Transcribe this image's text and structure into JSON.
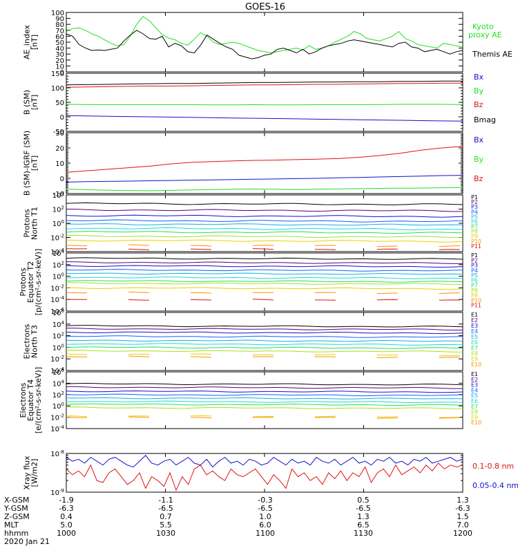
{
  "title": "GOES-16",
  "colors": {
    "black": "#000000",
    "blue": "#1010d0",
    "green": "#20e020",
    "red": "#e01010",
    "p_scale": [
      "#000000",
      "#5a006f",
      "#1010d0",
      "#1060ff",
      "#10b0e0",
      "#20d8d0",
      "#20e060",
      "#a8e020",
      "#e8d000",
      "#ff9000",
      "#e01010",
      "#b00000"
    ]
  },
  "bottom_axis": {
    "row_labels": [
      "X-GSM",
      "Y-GSM",
      "Z-GSM",
      "MLT",
      "hhmm",
      "2020 Jan 21"
    ],
    "columns": [
      {
        "x": "-1.9",
        "y": "-6.3",
        "z": "0.4",
        "mlt": "5.0",
        "hhmm": "1000"
      },
      {
        "x": "-1.1",
        "y": "-6.5",
        "z": "0.7",
        "mlt": "5.5",
        "hhmm": "1030"
      },
      {
        "x": "-0.3",
        "y": "-6.5",
        "z": "1.0",
        "mlt": "6.0",
        "hhmm": "1100"
      },
      {
        "x": "0.5",
        "y": "-6.5",
        "z": "1.3",
        "mlt": "6.5",
        "hhmm": "1130"
      },
      {
        "x": "1.3",
        "y": "-6.3",
        "z": "1.5",
        "mlt": "7.0",
        "hhmm": "1200"
      }
    ]
  },
  "chart_data": [
    {
      "type": "line",
      "ylabel": "AE_index [nT]",
      "ylim": [
        0,
        100
      ],
      "yticks": [
        "0",
        "10",
        "20",
        "30",
        "40",
        "50",
        "60",
        "70",
        "80",
        "90",
        "100"
      ],
      "series": [
        {
          "name": "Kyoto proxy AE",
          "color": "#20e020",
          "values": [
            68,
            73,
            74,
            70,
            64,
            60,
            54,
            48,
            44,
            46,
            60,
            80,
            93,
            86,
            74,
            63,
            57,
            54,
            48,
            45,
            55,
            66,
            60,
            50,
            46,
            48,
            50,
            48,
            44,
            40,
            36,
            34,
            32,
            34,
            36,
            38,
            40,
            37,
            44,
            38,
            40,
            44,
            50,
            55,
            60,
            68,
            64,
            56,
            54,
            52,
            56,
            60,
            68,
            56,
            52,
            46,
            44,
            42,
            40,
            48,
            46,
            44,
            42
          ]
        },
        {
          "name": "Themis AE",
          "color": "#000000",
          "values": [
            64,
            60,
            46,
            40,
            36,
            37,
            36,
            38,
            40,
            52,
            62,
            70,
            64,
            56,
            55,
            60,
            42,
            48,
            44,
            34,
            32,
            45,
            62,
            55,
            48,
            42,
            38,
            28,
            25,
            22,
            24,
            28,
            30,
            38,
            40,
            36,
            32,
            38,
            30,
            34,
            40,
            44,
            46,
            48,
            52,
            54,
            52,
            50,
            48,
            46,
            44,
            42,
            48,
            50,
            42,
            40,
            34,
            36,
            38,
            34,
            30,
            34,
            36
          ]
        }
      ]
    },
    {
      "type": "line",
      "ylabel": "B (SM) [nT]",
      "ylim": [
        -50,
        150
      ],
      "yticks": [
        "-50",
        "0",
        "50",
        "100",
        "150"
      ],
      "series": [
        {
          "name": "Bx",
          "color": "#1010d0",
          "values": [
            4,
            3,
            2,
            1,
            0,
            -1,
            -2,
            -3,
            -4,
            -5,
            -6,
            -7,
            -8,
            -9,
            -10,
            -11,
            -12,
            -13,
            -14,
            -15
          ]
        },
        {
          "name": "By",
          "color": "#20e020",
          "values": [
            43,
            42,
            42,
            42,
            42,
            42,
            42,
            41,
            41,
            42,
            41,
            41,
            42,
            42,
            42,
            42,
            43,
            43,
            43,
            42
          ]
        },
        {
          "name": "Bz",
          "color": "#e01010",
          "values": [
            102,
            103,
            104,
            105,
            106,
            106,
            107,
            108,
            109,
            110,
            110,
            111,
            112,
            112,
            113,
            114,
            115,
            115,
            116,
            116
          ]
        },
        {
          "name": "Bmag",
          "color": "#000000",
          "values": [
            110,
            111,
            112,
            113,
            114,
            115,
            115,
            116,
            117,
            118,
            118,
            119,
            120,
            120,
            121,
            121,
            122,
            122,
            123,
            123
          ]
        }
      ]
    },
    {
      "type": "line",
      "ylabel": "B (SM)-IGRF (SM) [nT]",
      "ylim": [
        -10,
        30
      ],
      "yticks": [
        "-10",
        "0",
        "10",
        "20",
        "30"
      ],
      "series": [
        {
          "name": "Bx",
          "color": "#1010d0",
          "values": [
            -2.5,
            -2.2,
            -2,
            -1.8,
            -1.6,
            -1.4,
            -1.2,
            -1,
            -0.8,
            -0.6,
            -0.4,
            -0.2,
            0,
            0.3,
            0.6,
            0.9,
            1.2,
            1.5,
            1.8,
            2
          ]
        },
        {
          "name": "By",
          "color": "#20e020",
          "values": [
            -7,
            -7.5,
            -7.8,
            -8,
            -8.2,
            -7.9,
            -7.6,
            -7.4,
            -7.2,
            -7,
            -7.2,
            -7.4,
            -7.1,
            -6.9,
            -6.8,
            -6.6,
            -6.5,
            -6.4,
            -6.2,
            -6
          ]
        },
        {
          "name": "Bz",
          "color": "#e01010",
          "values": [
            4,
            5,
            6,
            7,
            8,
            9.5,
            10.5,
            11,
            11.5,
            11.8,
            12,
            12.3,
            12.6,
            13,
            13.8,
            15,
            16.5,
            18.5,
            20,
            21
          ]
        }
      ]
    },
    {
      "type": "line",
      "ylabel": "Protons North T1",
      "ylog": true,
      "ylim": [
        0.0001,
        10000
      ],
      "yticks": [
        "10^-4",
        "10^-2",
        "10^0",
        "10^2",
        "10^4"
      ],
      "series_labels": [
        "P1",
        "P2",
        "P3",
        "P4",
        "P5",
        "P6",
        "P7",
        "P8",
        "P9",
        "P10",
        "P11"
      ],
      "levels_log10": [
        2.8,
        1.9,
        1.1,
        0.4,
        -0.1,
        -0.7,
        -1.2,
        -1.8,
        -2.4,
        -3.1,
        -3.6
      ]
    },
    {
      "type": "line",
      "ylabel": "Protons Equator T2 [p/(cm²-s-sr-keV)]",
      "ylog": true,
      "ylim": [
        1e-06,
        10000
      ],
      "yticks": [
        "10^-6",
        "10^-4",
        "10^-2",
        "10^0",
        "10^2",
        "10^4"
      ],
      "series_labels": [
        "P1",
        "P2",
        "P3",
        "P4",
        "P5",
        "P6",
        "P7",
        "P8",
        "P9",
        "P10",
        "P11"
      ],
      "levels_log10": [
        3.1,
        2.4,
        1.8,
        1.1,
        0.5,
        -0.2,
        -0.8,
        -1.2,
        -2.0,
        -2.8,
        -4.0
      ]
    },
    {
      "type": "line",
      "ylabel": "Electrons North T3",
      "ylog": true,
      "ylim": [
        0.0001,
        1000000
      ],
      "yticks": [
        "10^-4",
        "10^-2",
        "10^0",
        "10^2",
        "10^4",
        "10^6"
      ],
      "series_labels": [
        "E1",
        "E2",
        "E3",
        "E4",
        "E5",
        "E6",
        "E7",
        "E8",
        "E9",
        "E10"
      ],
      "levels_log10": [
        3.7,
        3.2,
        2.6,
        1.9,
        1.2,
        0.6,
        0.0,
        -0.6,
        -1.2,
        -1.6
      ]
    },
    {
      "type": "line",
      "ylabel": "Electrons Equator T4 [e/(cm²-s-sr-keV)]",
      "ylog": true,
      "ylim": [
        0.0001,
        1000000
      ],
      "yticks": [
        "10^-4",
        "10^-2",
        "10^0",
        "10^2",
        "10^4",
        "10^6"
      ],
      "series_labels": [
        "E1",
        "E2",
        "E3",
        "E4",
        "E5",
        "E6",
        "E7",
        "E8",
        "E9",
        "E10"
      ],
      "levels_log10": [
        3.9,
        3.3,
        2.6,
        2.0,
        1.4,
        0.8,
        0.3,
        -0.3,
        -1.8,
        -2.0
      ]
    },
    {
      "type": "line",
      "ylabel": "Xray flux [W/m2]",
      "ylog": true,
      "ylim": [
        1e-09,
        1e-08
      ],
      "yticks": [
        "10^-9",
        "10^-8"
      ],
      "series": [
        {
          "name": "0.1-0.8 nm",
          "color": "#e01010",
          "values": [
            -8.4,
            -8.55,
            -8.45,
            -8.6,
            -8.3,
            -8.7,
            -8.75,
            -8.5,
            -8.4,
            -8.6,
            -8.8,
            -8.7,
            -8.5,
            -8.9,
            -8.6,
            -8.7,
            -8.85,
            -8.5,
            -8.95,
            -8.6,
            -8.8,
            -8.4,
            -8.3,
            -8.55,
            -8.45,
            -8.6,
            -8.7,
            -8.4,
            -8.55,
            -8.6,
            -8.5,
            -8.4,
            -8.6,
            -8.8,
            -8.55,
            -8.7,
            -8.9,
            -8.4,
            -8.6,
            -8.5,
            -8.7,
            -8.6,
            -8.8,
            -8.5,
            -8.65,
            -8.45,
            -8.7,
            -8.5,
            -8.6,
            -8.35,
            -8.75,
            -8.5,
            -8.4,
            -8.6,
            -8.3,
            -8.55,
            -8.45,
            -8.35,
            -8.5,
            -8.3,
            -8.45,
            -8.25,
            -8.4,
            -8.3,
            -8.35,
            -8.3
          ]
        },
        {
          "name": "0.05-0.4 nm",
          "color": "#1010d0",
          "values": [
            -8.1,
            -8.2,
            -8.15,
            -8.25,
            -8.1,
            -8.2,
            -8.3,
            -8.15,
            -8.1,
            -8.2,
            -8.3,
            -8.35,
            -8.2,
            -8.05,
            -8.25,
            -8.3,
            -8.2,
            -8.15,
            -8.3,
            -8.2,
            -8.1,
            -8.25,
            -8.3,
            -8.15,
            -8.35,
            -8.2,
            -8.1,
            -8.25,
            -8.2,
            -8.3,
            -8.15,
            -8.2,
            -8.3,
            -8.25,
            -8.1,
            -8.2,
            -8.3,
            -8.15,
            -8.25,
            -8.2,
            -8.3,
            -8.1,
            -8.2,
            -8.25,
            -8.15,
            -8.3,
            -8.2,
            -8.1,
            -8.25,
            -8.2,
            -8.3,
            -8.15,
            -8.2,
            -8.1,
            -8.25,
            -8.2,
            -8.3,
            -8.15,
            -8.2,
            -8.1,
            -8.25,
            -8.2,
            -8.15,
            -8.1,
            -8.2,
            -8.15
          ]
        }
      ]
    }
  ]
}
